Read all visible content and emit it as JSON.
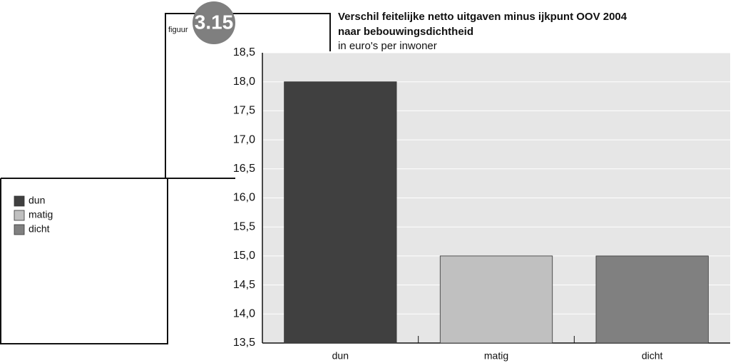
{
  "chart_data": {
    "type": "bar",
    "figure_label": "figuur",
    "figure_number": "3.15",
    "title": "Verschil feitelijke netto uitgaven minus ijkpunt OOV 2004",
    "title_line2": "naar bebouwingsdichtheid",
    "subtitle": "in euro's per inwoner",
    "categories": [
      "dun",
      "matig",
      "dicht"
    ],
    "values": [
      18.0,
      15.0,
      15.0
    ],
    "colors": [
      "#404040",
      "#c0c0c0",
      "#808080"
    ],
    "ylim": [
      13.5,
      18.5
    ],
    "yticks": [
      {
        "value": 13.5,
        "label": "13,5"
      },
      {
        "value": 14.0,
        "label": "14,0"
      },
      {
        "value": 14.5,
        "label": "14,5"
      },
      {
        "value": 15.0,
        "label": "15,0"
      },
      {
        "value": 15.5,
        "label": "15,5"
      },
      {
        "value": 16.0,
        "label": "16,0"
      },
      {
        "value": 16.5,
        "label": "16,5"
      },
      {
        "value": 17.0,
        "label": "17,0"
      },
      {
        "value": 17.5,
        "label": "17,5"
      },
      {
        "value": 18.0,
        "label": "18,0"
      },
      {
        "value": 18.5,
        "label": "18,5"
      }
    ],
    "grid": true
  }
}
